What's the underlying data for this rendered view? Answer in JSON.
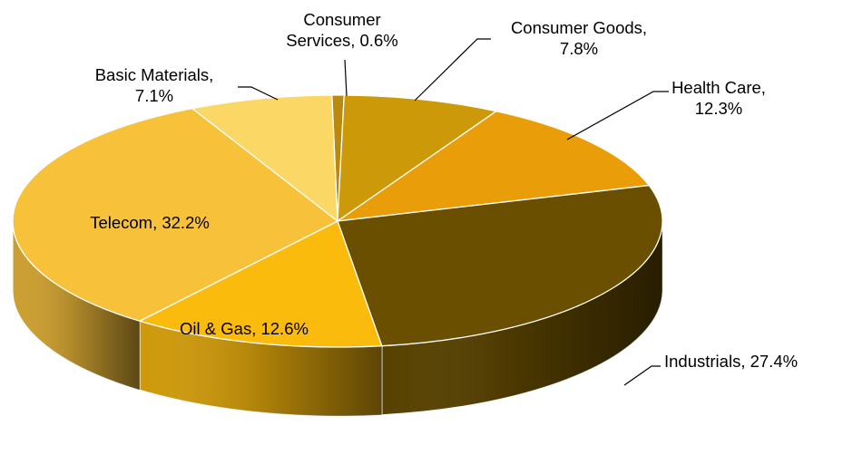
{
  "chart_data": {
    "type": "pie",
    "title": "",
    "legend": "none",
    "style": "3d-pie",
    "slices": [
      {
        "name": "Consumer Services",
        "value": 0.6,
        "label_lines": [
          "Consumer",
          "Services, 0.6%"
        ],
        "color": "#b98a0e"
      },
      {
        "name": "Consumer Goods",
        "value": 7.8,
        "label_lines": [
          "Consumer Goods,",
          "7.8%"
        ],
        "color": "#cc9a09"
      },
      {
        "name": "Health Care",
        "value": 12.3,
        "label_lines": [
          "Health Care,",
          "12.3%"
        ],
        "color": "#e99d08"
      },
      {
        "name": "Industrials",
        "value": 27.4,
        "label_lines": [
          "Industrials, 27.4%"
        ],
        "color": "#6a4f00"
      },
      {
        "name": "Oil & Gas",
        "value": 12.6,
        "label_lines": [
          "Oil & Gas, 12.6%"
        ],
        "color": "#fbbb0d"
      },
      {
        "name": "Telecom",
        "value": 32.2,
        "label_lines": [
          "Telecom, 32.2%"
        ],
        "color": "#f8c13a"
      },
      {
        "name": "Basic Materials",
        "value": 7.1,
        "label_lines": [
          "Basic Materials,",
          "7.1%"
        ],
        "color": "#fbd765"
      }
    ]
  }
}
